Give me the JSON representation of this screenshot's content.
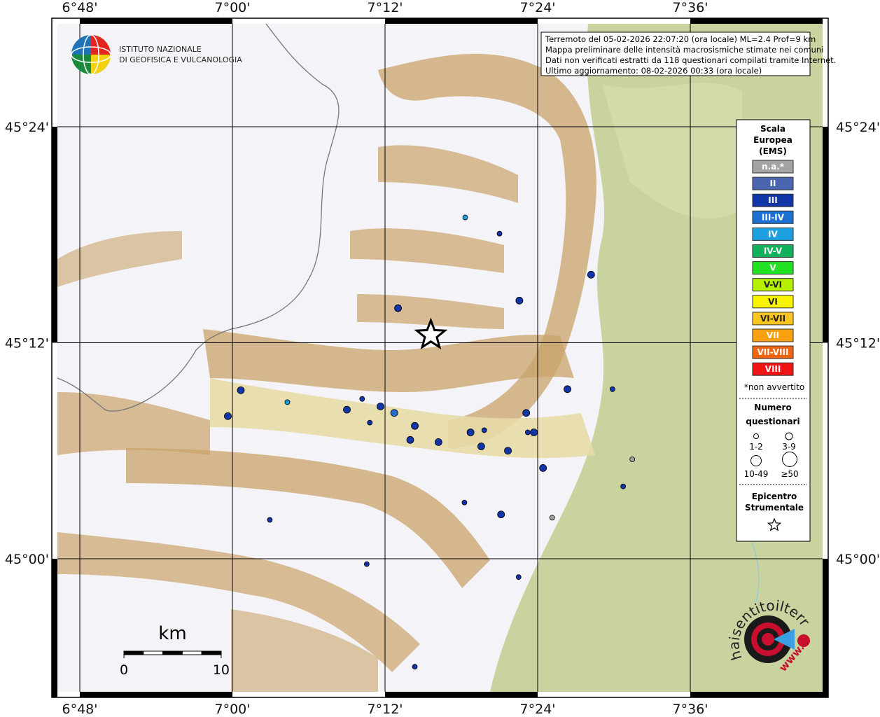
{
  "header": {
    "institute_line1": "ISTITUTO NAZIONALE",
    "institute_line2": "DI GEOFISICA E VULCANOLOGIA"
  },
  "info_box": [
    "Terremoto del 05-02-2026 22:07:20 (ora locale) ML=2.4 Prof=9 km",
    "Mappa preliminare delle intensità macrosismiche stimate nei comuni",
    "Dati non verificati estratti da 118 questionari compilati tramite Internet.",
    "Ultimo aggiornamento: 08-02-2026 00:33 (ora locale)"
  ],
  "map": {
    "lon_range": [
      6.7633,
      7.7807
    ],
    "lat_range": [
      44.8716,
      45.5005
    ],
    "lon_ticks": [
      {
        "value": 6.8,
        "label": "6°48'"
      },
      {
        "value": 7.0,
        "label": "7°00'"
      },
      {
        "value": 7.2,
        "label": "7°12'"
      },
      {
        "value": 7.4,
        "label": "7°24'"
      },
      {
        "value": 7.6,
        "label": "7°36'"
      }
    ],
    "lat_ticks": [
      {
        "value": 45.0,
        "label": "45°00'"
      },
      {
        "value": 45.2,
        "label": "45°12'"
      },
      {
        "value": 45.4,
        "label": "45°24'"
      }
    ],
    "epicenter": {
      "lon": 7.26,
      "lat": 45.207
    },
    "points": [
      {
        "lon": 7.305,
        "lat": 45.316,
        "intensity": "IV",
        "responses": "1-2"
      },
      {
        "lon": 7.35,
        "lat": 45.301,
        "intensity": "III",
        "responses": "1-2"
      },
      {
        "lon": 7.47,
        "lat": 45.263,
        "intensity": "III",
        "responses": "3-9"
      },
      {
        "lon": 7.376,
        "lat": 45.239,
        "intensity": "III",
        "responses": "3-9"
      },
      {
        "lon": 7.217,
        "lat": 45.232,
        "intensity": "III",
        "responses": "3-9"
      },
      {
        "lon": 7.011,
        "lat": 45.156,
        "intensity": "III",
        "responses": "3-9"
      },
      {
        "lon": 7.072,
        "lat": 45.145,
        "intensity": "IV",
        "responses": "1-2"
      },
      {
        "lon": 7.15,
        "lat": 45.138,
        "intensity": "III",
        "responses": "3-9"
      },
      {
        "lon": 7.17,
        "lat": 45.148,
        "intensity": "III",
        "responses": "1-2"
      },
      {
        "lon": 7.194,
        "lat": 45.141,
        "intensity": "III",
        "responses": "3-9"
      },
      {
        "lon": 7.212,
        "lat": 45.135,
        "intensity": "III-IV",
        "responses": "3-9"
      },
      {
        "lon": 7.18,
        "lat": 45.126,
        "intensity": "III",
        "responses": "1-2"
      },
      {
        "lon": 7.239,
        "lat": 45.123,
        "intensity": "III",
        "responses": "3-9"
      },
      {
        "lon": 6.994,
        "lat": 45.132,
        "intensity": "III",
        "responses": "3-9"
      },
      {
        "lon": 7.233,
        "lat": 45.11,
        "intensity": "III",
        "responses": "3-9"
      },
      {
        "lon": 7.27,
        "lat": 45.108,
        "intensity": "III",
        "responses": "3-9"
      },
      {
        "lon": 7.312,
        "lat": 45.117,
        "intensity": "III",
        "responses": "3-9"
      },
      {
        "lon": 7.33,
        "lat": 45.119,
        "intensity": "III",
        "responses": "1-2"
      },
      {
        "lon": 7.326,
        "lat": 45.104,
        "intensity": "III",
        "responses": "3-9"
      },
      {
        "lon": 7.361,
        "lat": 45.1,
        "intensity": "III",
        "responses": "3-9"
      },
      {
        "lon": 7.385,
        "lat": 45.135,
        "intensity": "III",
        "responses": "3-9"
      },
      {
        "lon": 7.387,
        "lat": 45.117,
        "intensity": "III",
        "responses": "1-2"
      },
      {
        "lon": 7.395,
        "lat": 45.117,
        "intensity": "III",
        "responses": "3-9"
      },
      {
        "lon": 7.439,
        "lat": 45.157,
        "intensity": "III",
        "responses": "3-9"
      },
      {
        "lon": 7.498,
        "lat": 45.157,
        "intensity": "III",
        "responses": "1-2"
      },
      {
        "lon": 7.407,
        "lat": 45.084,
        "intensity": "III",
        "responses": "3-9"
      },
      {
        "lon": 7.524,
        "lat": 45.092,
        "intensity": "n.a.*",
        "responses": "1-2"
      },
      {
        "lon": 7.512,
        "lat": 45.067,
        "intensity": "III",
        "responses": "1-2"
      },
      {
        "lon": 7.304,
        "lat": 45.052,
        "intensity": "III",
        "responses": "1-2"
      },
      {
        "lon": 7.352,
        "lat": 45.041,
        "intensity": "III",
        "responses": "3-9"
      },
      {
        "lon": 7.419,
        "lat": 45.038,
        "intensity": "n.a.*",
        "responses": "1-2"
      },
      {
        "lon": 7.049,
        "lat": 45.036,
        "intensity": "III",
        "responses": "1-2"
      },
      {
        "lon": 7.176,
        "lat": 44.995,
        "intensity": "III",
        "responses": "1-2"
      },
      {
        "lon": 7.375,
        "lat": 44.983,
        "intensity": "III",
        "responses": "1-2"
      },
      {
        "lon": 7.239,
        "lat": 44.9,
        "intensity": "III",
        "responses": "1-2"
      }
    ]
  },
  "legend": {
    "title": [
      "Scala",
      "Europea",
      "(EMS)"
    ],
    "classes": [
      {
        "label": "n.a.*",
        "color": "#a3a3a3"
      },
      {
        "label": "II",
        "color": "#4a66b0"
      },
      {
        "label": "III",
        "color": "#1236a8"
      },
      {
        "label": "III-IV",
        "color": "#1d6fd0"
      },
      {
        "label": "IV",
        "color": "#1ca0e0"
      },
      {
        "label": "IV-V",
        "color": "#12b05a"
      },
      {
        "label": "V",
        "color": "#22e022"
      },
      {
        "label": "V-VI",
        "color": "#b4f000"
      },
      {
        "label": "VI",
        "color": "#f8f400"
      },
      {
        "label": "VI-VII",
        "color": "#f8c41e"
      },
      {
        "label": "VII",
        "color": "#f8a010"
      },
      {
        "label": "VII-VIII",
        "color": "#f06412"
      },
      {
        "label": "VIII",
        "color": "#f01414"
      }
    ],
    "note": "*non avvertito",
    "size_title": [
      "Numero",
      "questionari"
    ],
    "sizes": [
      "1-2",
      "3-9",
      "10-49",
      "≥50"
    ],
    "epicenter_title": [
      "Epicentro",
      "Strumentale"
    ]
  },
  "scale_bar": {
    "unit": "km",
    "ticks": [
      0,
      10
    ]
  },
  "logo": {
    "www": "www.",
    "site": "haisentitoilterremoto.it"
  }
}
